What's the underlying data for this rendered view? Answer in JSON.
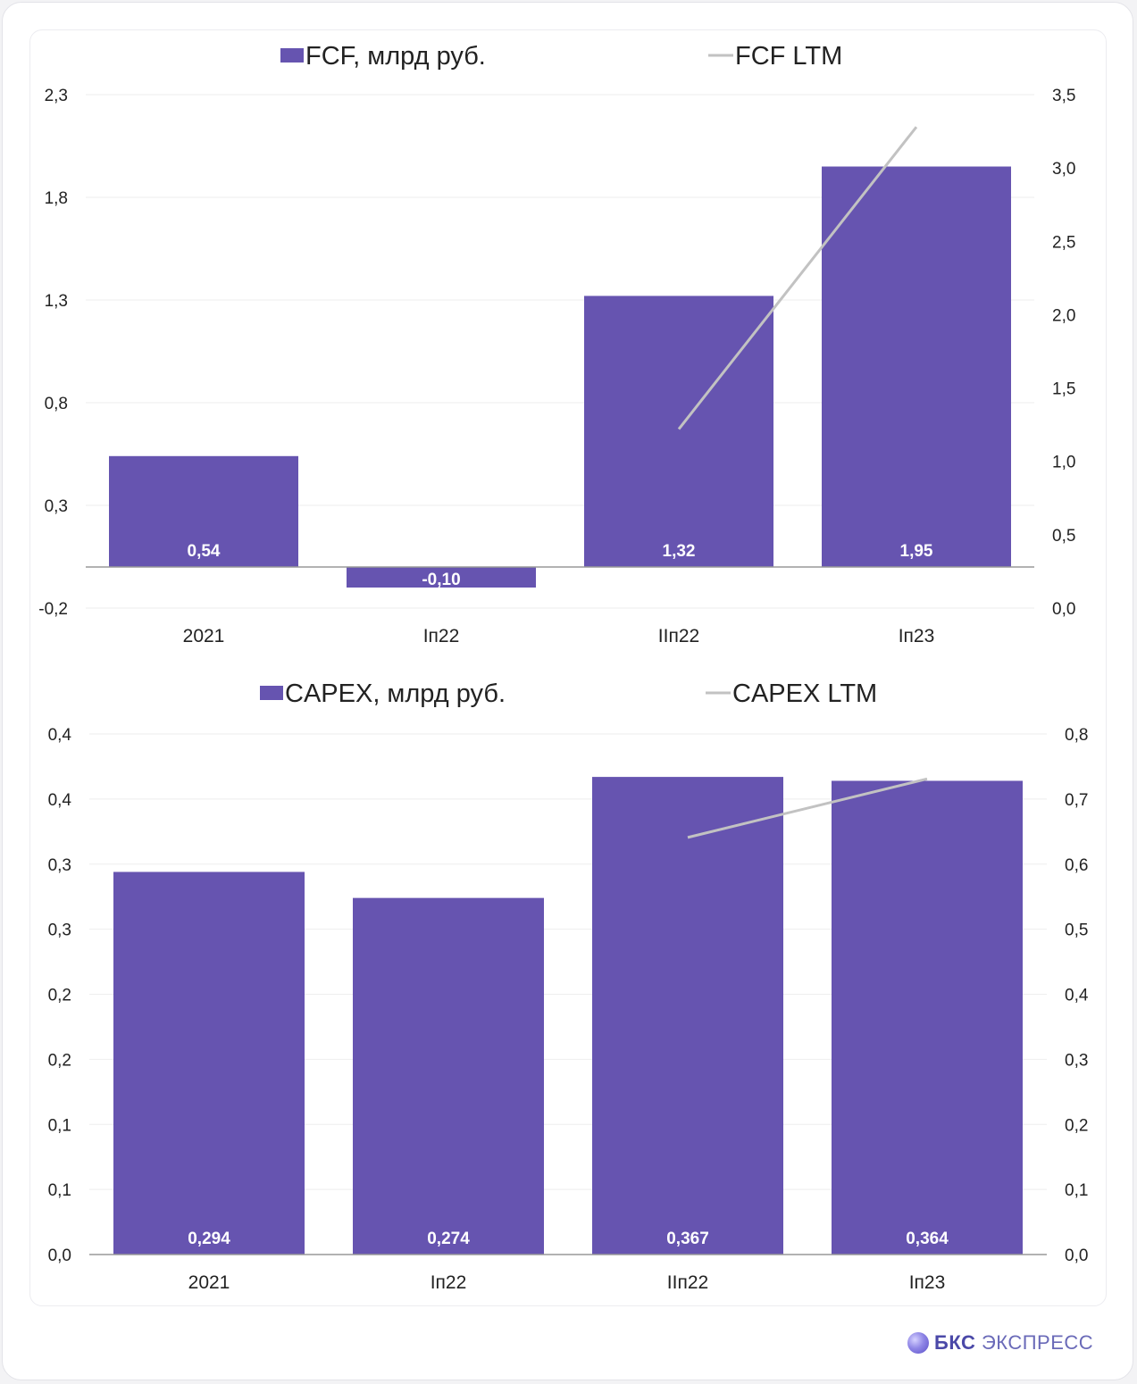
{
  "colors": {
    "bar": "#6654b0",
    "line": "#c2c2c2",
    "grid": "#eeeeee",
    "axis": "#999999",
    "text": "#222222",
    "bar_label": "#ffffff"
  },
  "brand": {
    "bold": "БКС",
    "light": "ЭКСПРЕСС"
  },
  "chart_data": [
    {
      "type": "bar",
      "categories": [
        "2021",
        "Iп22",
        "IIп22",
        "Iп23"
      ],
      "series": [
        {
          "name": "FCF, млрд руб.",
          "kind": "bar",
          "axis": "left",
          "values": [
            0.54,
            -0.1,
            1.32,
            1.95
          ],
          "labels": [
            "0,54",
            "-0,10",
            "1,32",
            "1,95"
          ]
        },
        {
          "name": "FCF LTM",
          "kind": "line",
          "axis": "right",
          "values": [
            null,
            null,
            1.22,
            3.28
          ]
        }
      ],
      "left_axis": {
        "min": -0.2,
        "max": 2.3,
        "ticks": [
          "2,3",
          "1,8",
          "1,3",
          "0,8",
          "0,3",
          "-0,2"
        ],
        "tick_values": [
          2.3,
          1.8,
          1.3,
          0.8,
          0.3,
          -0.2
        ]
      },
      "right_axis": {
        "min": 0,
        "max": 3.5,
        "ticks": [
          "3,5",
          "3,0",
          "2,5",
          "2,0",
          "1,5",
          "1,0",
          "0,5",
          "0,0"
        ],
        "tick_values": [
          3.5,
          3.0,
          2.5,
          2.0,
          1.5,
          1.0,
          0.5,
          0.0
        ]
      },
      "legend_position": "top",
      "grid": true
    },
    {
      "type": "bar",
      "categories": [
        "2021",
        "Iп22",
        "IIп22",
        "Iп23"
      ],
      "series": [
        {
          "name": "CAPEX, млрд руб.",
          "kind": "bar",
          "axis": "left",
          "values": [
            0.294,
            0.274,
            0.367,
            0.364
          ],
          "labels": [
            "0,294",
            "0,274",
            "0,367",
            "0,364"
          ]
        },
        {
          "name": "CAPEX LTM",
          "kind": "line",
          "axis": "right",
          "values": [
            null,
            null,
            0.641,
            0.731
          ]
        }
      ],
      "left_axis": {
        "min": 0,
        "max": 0.4,
        "ticks": [
          "0,4",
          "0,4",
          "0,3",
          "0,3",
          "0,2",
          "0,2",
          "0,1",
          "0,1",
          "0,0"
        ],
        "tick_values": [
          0.4,
          0.35,
          0.3,
          0.25,
          0.2,
          0.15,
          0.1,
          0.05,
          0.0
        ]
      },
      "right_axis": {
        "min": 0,
        "max": 0.8,
        "ticks": [
          "0,8",
          "0,7",
          "0,6",
          "0,5",
          "0,4",
          "0,3",
          "0,2",
          "0,1",
          "0,0"
        ],
        "tick_values": [
          0.8,
          0.7,
          0.6,
          0.5,
          0.4,
          0.3,
          0.2,
          0.1,
          0.0
        ]
      },
      "legend_position": "top",
      "grid": true
    }
  ]
}
